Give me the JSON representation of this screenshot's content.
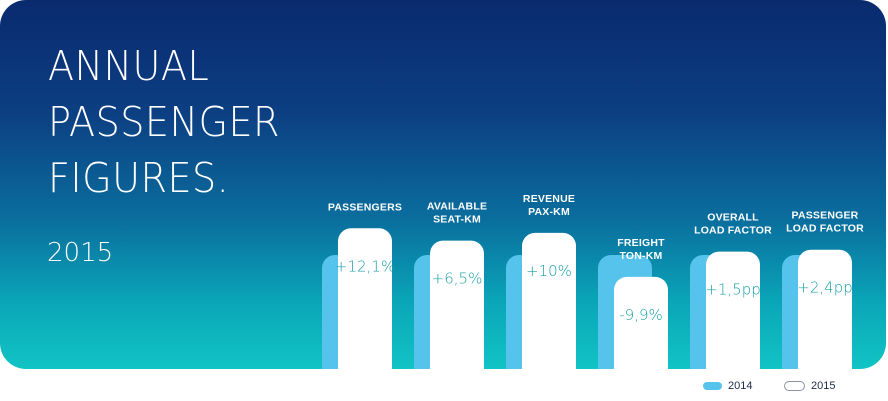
{
  "title_lines": [
    "ANNUAL",
    "PASSENGER",
    "FIGURES."
  ],
  "year": "2015",
  "legend": [
    {
      "label": "2014",
      "color": "#56c3ec"
    },
    {
      "label": "2015",
      "color": "#ffffff"
    }
  ],
  "chart_data": {
    "type": "bar",
    "title": "ANNUAL PASSENGER FIGURES.",
    "categories": [
      [
        "PASSENGERS"
      ],
      [
        "AVAILABLE",
        "SEAT-KM"
      ],
      [
        "REVENUE",
        "PAX-KM"
      ],
      [
        "FREIGHT",
        "TON-KM"
      ],
      [
        "OVERALL",
        "LOAD FACTOR"
      ],
      [
        "PASSENGER",
        "LOAD FACTOR"
      ]
    ],
    "series": [
      {
        "name": "2014",
        "values": [
          100,
          100,
          100,
          100,
          100,
          100
        ]
      },
      {
        "name": "2015",
        "values": [
          112.1,
          106.5,
          110,
          90.1,
          101.5,
          102.4
        ]
      }
    ],
    "value_labels": [
      "+12,1%",
      "+6,5%",
      "+10%",
      "-9,9%",
      "+1,5pp",
      "+2,4pp"
    ],
    "legend_position": "bottom-right",
    "grid": false
  }
}
